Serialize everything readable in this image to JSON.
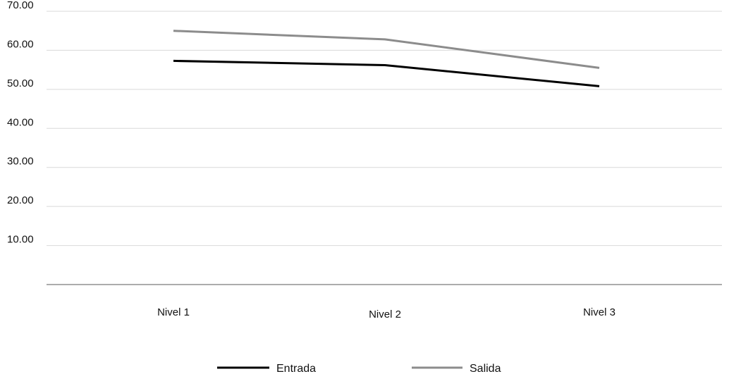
{
  "chart_data": {
    "type": "line",
    "title": "",
    "xlabel": "",
    "ylabel": "",
    "categories": [
      "Nivel 1",
      "Nivel 2",
      "Nivel 3"
    ],
    "ylim": [
      0,
      70
    ],
    "yticks": [
      "10.00",
      "20.00",
      "30.00",
      "40.00",
      "50.00",
      "60.00",
      "70.00"
    ],
    "grid": true,
    "legend_position": "bottom",
    "series": [
      {
        "name": "Entrada",
        "color": "#000000",
        "values": [
          57.3,
          56.2,
          50.8
        ]
      },
      {
        "name": "Salida",
        "color": "#8c8c8c",
        "values": [
          65.0,
          62.8,
          55.5
        ]
      }
    ]
  }
}
